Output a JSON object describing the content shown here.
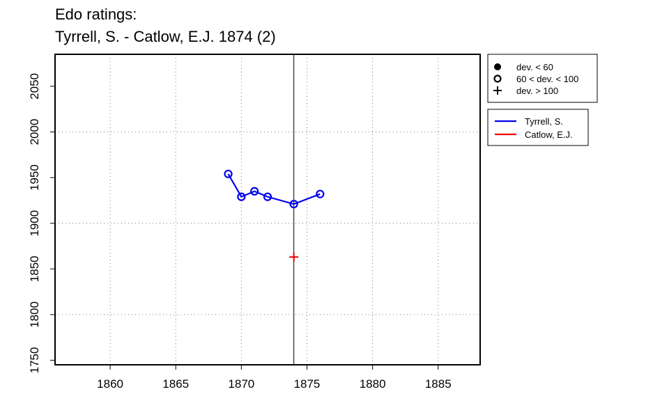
{
  "chart_data": {
    "type": "line",
    "title_lines": [
      "Edo ratings:",
      "Tyrrell, S. - Catlow, E.J. 1874 (2)"
    ],
    "xlabel": "",
    "ylabel": "",
    "xlim": [
      1855.8,
      1888.2
    ],
    "ylim": [
      1745,
      2085
    ],
    "x_ticks": [
      1860,
      1865,
      1870,
      1875,
      1880,
      1885
    ],
    "y_ticks": [
      1750,
      1800,
      1850,
      1900,
      1950,
      2000,
      2050
    ],
    "x_grid": [
      1860,
      1865,
      1870,
      1875,
      1880,
      1885
    ],
    "y_grid": [
      1800,
      1900,
      2000
    ],
    "grid": true,
    "vline": 1874,
    "series": [
      {
        "name": "Tyrrell, S.",
        "color": "#0000ee",
        "points": [
          {
            "x": 1869,
            "y": 1954,
            "marker": "open-circle"
          },
          {
            "x": 1870,
            "y": 1929,
            "marker": "open-circle"
          },
          {
            "x": 1871,
            "y": 1935,
            "marker": "open-circle"
          },
          {
            "x": 1872,
            "y": 1929,
            "marker": "open-circle"
          },
          {
            "x": 1874,
            "y": 1921,
            "marker": "open-circle"
          },
          {
            "x": 1876,
            "y": 1932,
            "marker": "open-circle"
          }
        ]
      },
      {
        "name": "Catlow, E.J.",
        "color": "#ee0000",
        "points": [
          {
            "x": 1874,
            "y": 1863,
            "marker": "plus"
          }
        ]
      }
    ],
    "marker_legend": [
      {
        "marker": "filled-circle",
        "label": "dev. < 60"
      },
      {
        "marker": "open-circle",
        "label": "60 < dev. < 100"
      },
      {
        "marker": "plus",
        "label": "dev. > 100"
      }
    ],
    "legend_placement": "right"
  }
}
